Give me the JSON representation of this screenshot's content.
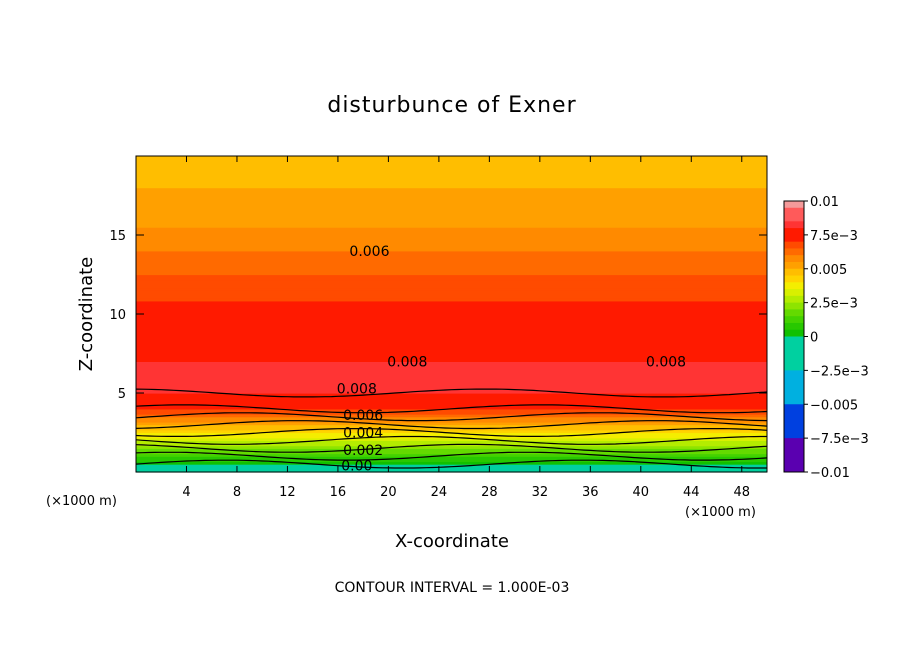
{
  "chart_data": {
    "type": "contour",
    "title": "disturbunce of Exner",
    "xlabel": "X-coordinate",
    "ylabel": "Z-coordinate",
    "x_unit_left": "(×1000 m)",
    "x_unit_right": "(×1000 m)",
    "xlim": [
      0,
      50
    ],
    "ylim": [
      0,
      20
    ],
    "xticks": [
      "4",
      "8",
      "12",
      "16",
      "20",
      "24",
      "28",
      "32",
      "36",
      "40",
      "44",
      "48"
    ],
    "yticks": [
      "5",
      "10",
      "15"
    ],
    "contour_interval_text": "CONTOUR INTERVAL = 1.000E-03",
    "colorbar": {
      "range": [
        -0.01,
        0.01
      ],
      "labels": [
        "0.01",
        "7.5e−3",
        "0.005",
        "2.5e−3",
        "0",
        "−2.5e−3",
        "−0.005",
        "−7.5e−3",
        "−0.01"
      ]
    },
    "contour_labels": [
      {
        "text": "0.006",
        "x": 18.5,
        "z": 14.0
      },
      {
        "text": "0.008",
        "x": 21.5,
        "z": 7.0
      },
      {
        "text": "0.008",
        "x": 42.0,
        "z": 7.0
      },
      {
        "text": "0.008",
        "x": 17.5,
        "z": 5.3
      },
      {
        "text": "0.006",
        "x": 18.0,
        "z": 3.6
      },
      {
        "text": "0.004",
        "x": 18.0,
        "z": 2.5
      },
      {
        "text": "0.002",
        "x": 18.0,
        "z": 1.4
      },
      {
        "text": "0.00",
        "x": 17.5,
        "z": 0.4
      }
    ],
    "profile": [
      {
        "z": 0.0,
        "value": -0.0005
      },
      {
        "z": 0.5,
        "value": 0.0
      },
      {
        "z": 1.0,
        "value": 0.001
      },
      {
        "z": 1.5,
        "value": 0.002
      },
      {
        "z": 2.0,
        "value": 0.003
      },
      {
        "z": 2.5,
        "value": 0.004
      },
      {
        "z": 3.0,
        "value": 0.005
      },
      {
        "z": 3.5,
        "value": 0.006
      },
      {
        "z": 4.0,
        "value": 0.007
      },
      {
        "z": 5.0,
        "value": 0.008
      },
      {
        "z": 6.0,
        "value": 0.0085
      },
      {
        "z": 7.0,
        "value": 0.008
      },
      {
        "z": 9.0,
        "value": 0.0074
      },
      {
        "z": 10.0,
        "value": 0.0072
      },
      {
        "z": 12.0,
        "value": 0.0067
      },
      {
        "z": 14.0,
        "value": 0.006
      },
      {
        "z": 16.5,
        "value": 0.0052
      },
      {
        "z": 18.0,
        "value": 0.005
      },
      {
        "z": 19.0,
        "value": 0.0047
      },
      {
        "z": 20.0,
        "value": 0.0045
      }
    ],
    "colors": {
      "0.0095": "#f49a9a",
      "0.0085": "#ff5a5a",
      "0.0080": "#ff3434",
      "0.0070": "#ff1a00",
      "0.0065": "#ff4b00",
      "0.0060": "#ff6a00",
      "0.0055": "#ff8a00",
      "0.0050": "#ffa000",
      "0.0045": "#ffbe00",
      "0.0040": "#ffd400",
      "0.0035": "#f4ee00",
      "0.0030": "#d8f000",
      "0.0025": "#b4ec00",
      "0.0020": "#8ee400",
      "0.0015": "#64da00",
      "0.0010": "#44d200",
      "0.0005": "#28c800",
      "0.0000": "#10c000",
      "-0.0025": "#00d0a0",
      "-0.0050": "#00b0e0",
      "-0.0075": "#0040e0",
      "-0.0100": "#5a00b0"
    }
  }
}
